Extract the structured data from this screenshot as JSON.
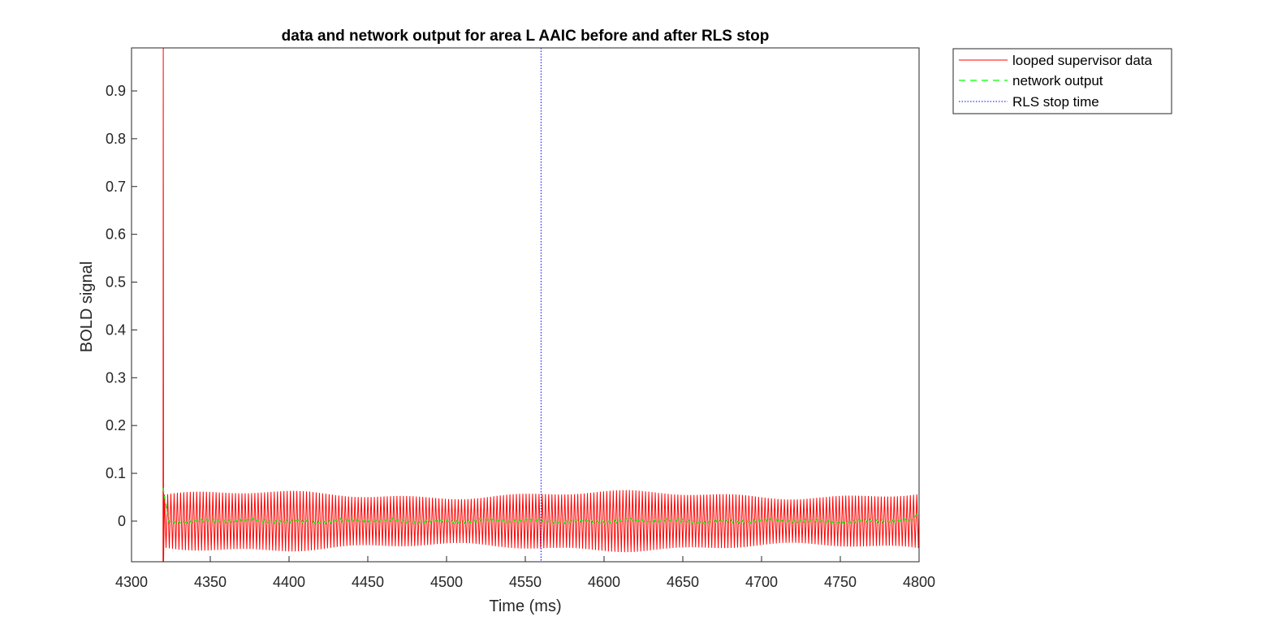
{
  "chart_data": {
    "type": "line",
    "title": "data and network output for area L AAIC before and after RLS stop",
    "xlabel": "Time (ms)",
    "ylabel": "BOLD signal",
    "xlim": [
      4300,
      4800
    ],
    "ylim": [
      -0.085,
      0.99
    ],
    "x_ticks": [
      4300,
      4350,
      4400,
      4450,
      4500,
      4550,
      4600,
      4650,
      4700,
      4750,
      4800
    ],
    "y_ticks": [
      0,
      0.1,
      0.2,
      0.3,
      0.4,
      0.5,
      0.6,
      0.7,
      0.8,
      0.9
    ],
    "x_tick_labels": [
      "4300",
      "4350",
      "4400",
      "4450",
      "4500",
      "4550",
      "4600",
      "4650",
      "4700",
      "4750",
      "4800"
    ],
    "y_tick_labels": [
      "0",
      "0.1",
      "0.2",
      "0.3",
      "0.4",
      "0.5",
      "0.6",
      "0.7",
      "0.8",
      "0.9"
    ],
    "grid": false,
    "legend_position": "outside-top-right",
    "series": [
      {
        "name": "looped supervisor data",
        "style": "solid",
        "color": "#ff0000",
        "x_start": 4320,
        "x_end": 4800,
        "initial_spike": 0.99,
        "initial_min": -0.085,
        "baseline": 0,
        "oscillation_amplitude": 0.055,
        "oscillation_period": 2.05
      },
      {
        "name": "network output",
        "style": "dashed",
        "color": "#00ff00",
        "x_start": 4320,
        "x_end": 4800,
        "initial_peak": 0.07,
        "baseline": 0,
        "ripple_amplitude": 0.004,
        "end_value": 0.02
      },
      {
        "name": "RLS stop time",
        "style": "dotted",
        "color": "#0000ff",
        "x": 4560
      }
    ]
  }
}
